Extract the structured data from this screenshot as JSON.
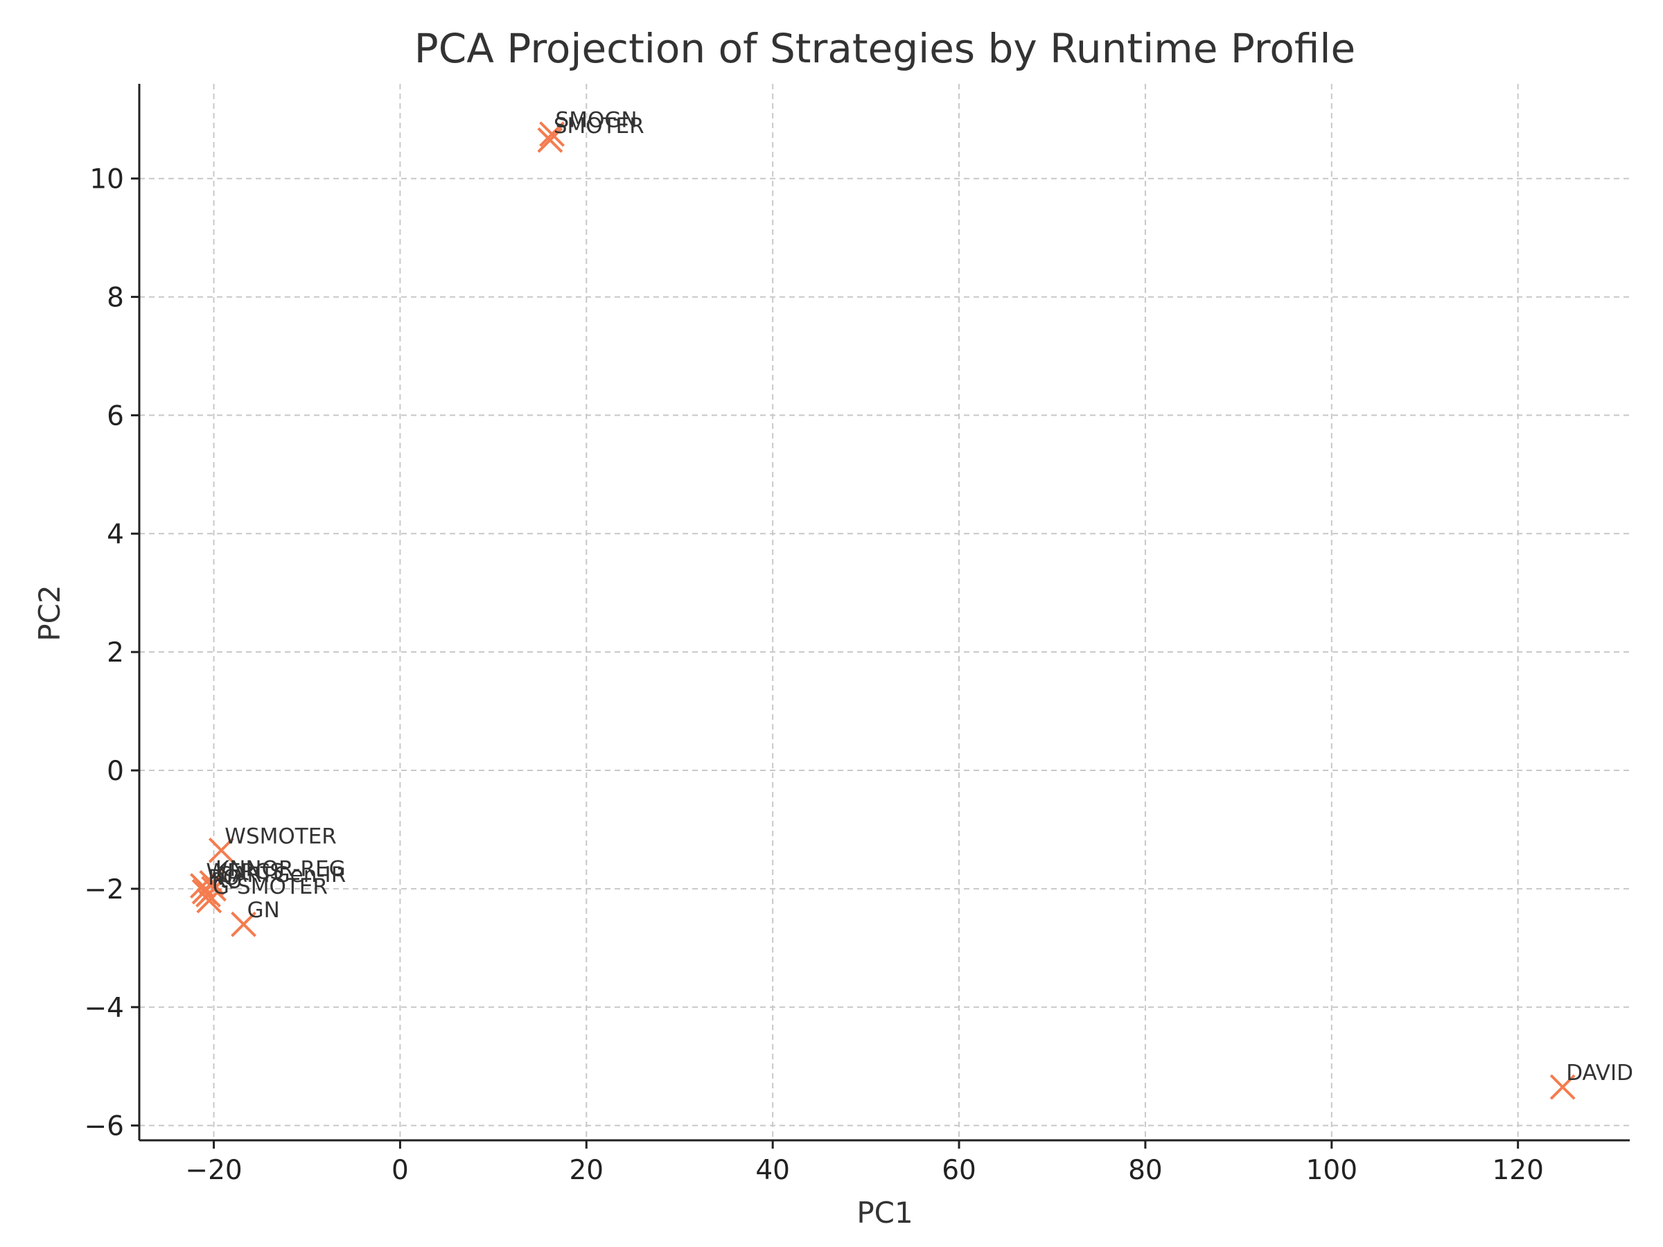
{
  "chart_data": {
    "type": "scatter",
    "title": "PCA Projection of Strategies by Runtime Profile",
    "xlabel": "PC1",
    "ylabel": "PC2",
    "xlim": [
      -28,
      132
    ],
    "ylim": [
      -6.25,
      11.6
    ],
    "xticks": [
      -20,
      0,
      20,
      40,
      60,
      80,
      100,
      120
    ],
    "yticks": [
      -6,
      -4,
      -2,
      0,
      2,
      4,
      6,
      8,
      10
    ],
    "grid": true,
    "marker": "x",
    "marker_color": "#f47c4f",
    "points": [
      {
        "label": "SMOGN",
        "x": 16.3,
        "y": 10.75
      },
      {
        "label": "SMOTER",
        "x": 16.1,
        "y": 10.65
      },
      {
        "label": "WSMOTER",
        "x": -19.2,
        "y": -1.35
      },
      {
        "label": "KNNOR-REG",
        "x": -20.2,
        "y": -1.9
      },
      {
        "label": "WERCS",
        "x": -21.2,
        "y": -1.95
      },
      {
        "label": "RO",
        "x": -21.0,
        "y": -2.05
      },
      {
        "label": "RU",
        "x": -20.6,
        "y": -2.1
      },
      {
        "label": "CARTGen-IR",
        "x": -20.0,
        "y": -2.0
      },
      {
        "label": "G-SMOTER",
        "x": -20.5,
        "y": -2.2
      },
      {
        "label": "GN",
        "x": -16.8,
        "y": -2.6
      },
      {
        "label": "DAVID",
        "x": 124.8,
        "y": -5.35
      }
    ]
  }
}
